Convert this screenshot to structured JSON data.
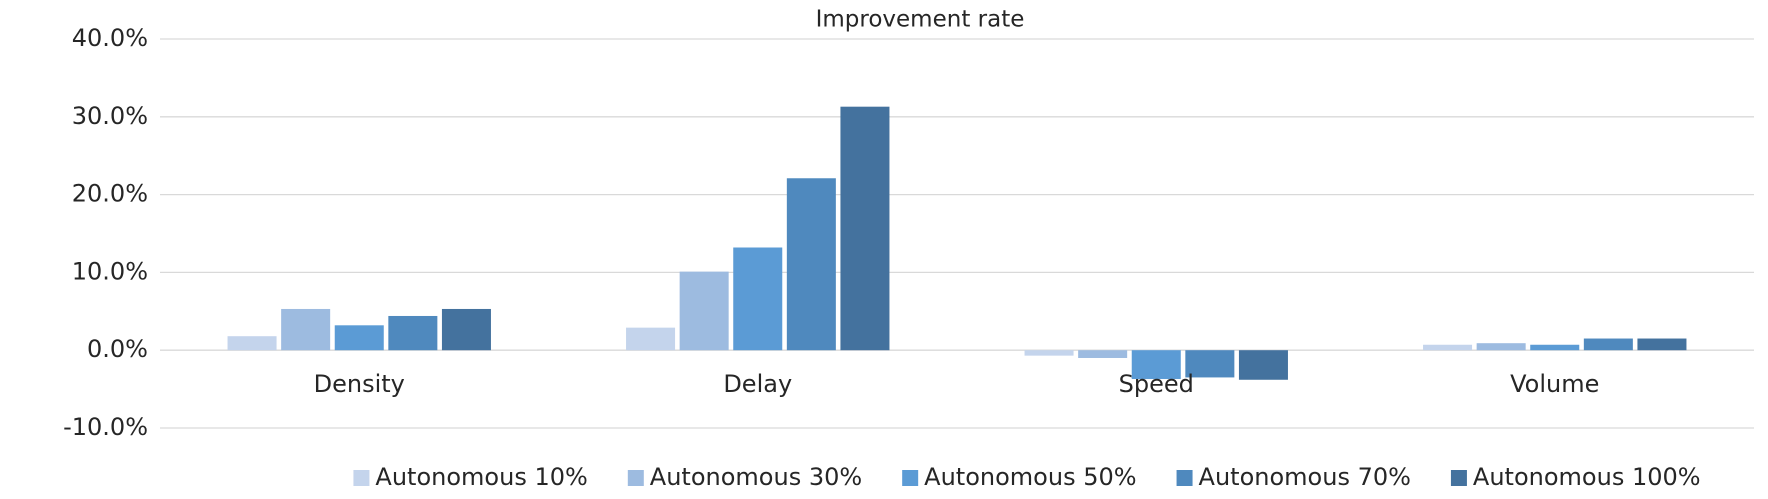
{
  "chart_data": {
    "type": "bar",
    "title": "Improvement  rate",
    "categories": [
      "Density",
      "Delay",
      "Speed",
      "Volume"
    ],
    "series": [
      {
        "name": "Autonomous 10%",
        "color": "#c4d4ec",
        "values": [
          1.8,
          2.9,
          -0.7,
          0.7
        ]
      },
      {
        "name": "Autonomous 30%",
        "color": "#9dbbe0",
        "values": [
          5.3,
          10.1,
          -1.0,
          0.9
        ]
      },
      {
        "name": "Autonomous 50%",
        "color": "#5b9bd5",
        "values": [
          3.2,
          13.2,
          -3.7,
          0.7
        ]
      },
      {
        "name": "Autonomous 70%",
        "color": "#4f89be",
        "values": [
          4.4,
          22.1,
          -3.5,
          1.5
        ]
      },
      {
        "name": "Autonomous 100%",
        "color": "#44729e",
        "values": [
          5.3,
          31.3,
          -3.8,
          1.5
        ]
      }
    ],
    "ylim": [
      -10,
      40
    ],
    "yticks": [
      {
        "value": -10,
        "label": "-10.0%"
      },
      {
        "value": 0,
        "label": "0.0%"
      },
      {
        "value": 10,
        "label": "10.0%"
      },
      {
        "value": 20,
        "label": "20.0%"
      },
      {
        "value": 30,
        "label": "30.0%"
      },
      {
        "value": 40,
        "label": "40.0%"
      }
    ],
    "grid": true,
    "legend": "bottom"
  }
}
